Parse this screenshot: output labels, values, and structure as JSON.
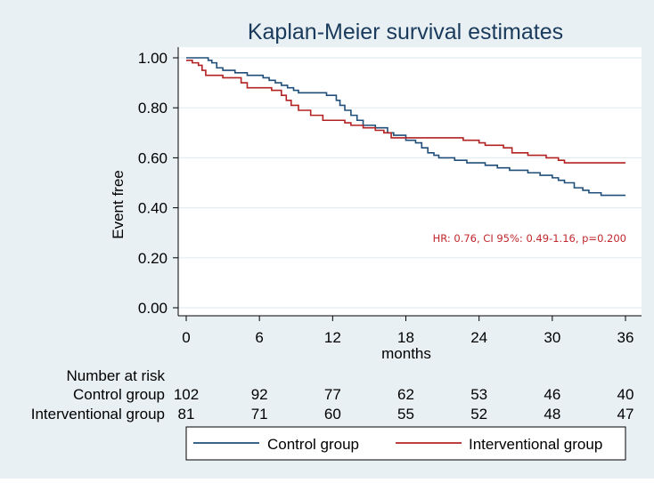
{
  "chart_data": {
    "type": "line",
    "title": "Kaplan-Meier survival estimates",
    "xlabel": "months",
    "ylabel": "Event free",
    "xlim": [
      0,
      36
    ],
    "ylim": [
      0,
      1
    ],
    "x_ticks": [
      0,
      6,
      12,
      18,
      24,
      30,
      36
    ],
    "y_ticks": [
      0,
      0.2,
      0.4,
      0.6,
      0.8,
      1.0
    ],
    "x_tick_labels": [
      "0",
      "6",
      "12",
      "18",
      "24",
      "30",
      "36"
    ],
    "y_tick_labels": [
      "0.00",
      "0.20",
      "0.40",
      "0.60",
      "0.80",
      "1.00"
    ],
    "grid": true,
    "legend_position": "bottom",
    "annotation": "HR: 0.76, CI 95%: 0.49-1.16, p=0.200",
    "colors": {
      "control": "#1f4e79",
      "interventional": "#b22222",
      "annotation": "#c0282c",
      "background": "#e8f0f3",
      "plot_bg": "#ffffff"
    },
    "series": [
      {
        "name": "Control group",
        "color": "#1f4e79",
        "points": [
          [
            0,
            1.0
          ],
          [
            1.6,
            1.0
          ],
          [
            1.8,
            0.99
          ],
          [
            2.1,
            0.98
          ],
          [
            2.5,
            0.96
          ],
          [
            3.0,
            0.95
          ],
          [
            4.0,
            0.94
          ],
          [
            5.0,
            0.93
          ],
          [
            6.0,
            0.93
          ],
          [
            6.3,
            0.92
          ],
          [
            6.8,
            0.91
          ],
          [
            7.3,
            0.9
          ],
          [
            7.8,
            0.89
          ],
          [
            8.3,
            0.88
          ],
          [
            8.8,
            0.87
          ],
          [
            9.2,
            0.86
          ],
          [
            10.0,
            0.86
          ],
          [
            11.0,
            0.86
          ],
          [
            11.5,
            0.85
          ],
          [
            12.0,
            0.85
          ],
          [
            12.3,
            0.83
          ],
          [
            12.6,
            0.81
          ],
          [
            13.0,
            0.79
          ],
          [
            13.5,
            0.77
          ],
          [
            14.0,
            0.75
          ],
          [
            14.5,
            0.73
          ],
          [
            15.5,
            0.72
          ],
          [
            16.5,
            0.7
          ],
          [
            17.0,
            0.69
          ],
          [
            18.0,
            0.67
          ],
          [
            18.8,
            0.66
          ],
          [
            19.3,
            0.64
          ],
          [
            19.8,
            0.62
          ],
          [
            20.3,
            0.61
          ],
          [
            20.7,
            0.6
          ],
          [
            22.0,
            0.59
          ],
          [
            23.0,
            0.58
          ],
          [
            24.0,
            0.58
          ],
          [
            24.5,
            0.57
          ],
          [
            25.5,
            0.56
          ],
          [
            26.5,
            0.55
          ],
          [
            27.0,
            0.55
          ],
          [
            28.0,
            0.54
          ],
          [
            29.0,
            0.53
          ],
          [
            30.0,
            0.52
          ],
          [
            30.5,
            0.51
          ],
          [
            31.0,
            0.5
          ],
          [
            31.8,
            0.48
          ],
          [
            32.5,
            0.47
          ],
          [
            33.0,
            0.46
          ],
          [
            34.0,
            0.45
          ],
          [
            36.0,
            0.45
          ]
        ]
      },
      {
        "name": "Interventional group",
        "color": "#b22222",
        "points": [
          [
            0,
            0.99
          ],
          [
            0.5,
            0.98
          ],
          [
            1.0,
            0.97
          ],
          [
            1.3,
            0.95
          ],
          [
            1.6,
            0.93
          ],
          [
            2.5,
            0.93
          ],
          [
            3.0,
            0.92
          ],
          [
            4.5,
            0.9
          ],
          [
            5.0,
            0.88
          ],
          [
            6.0,
            0.88
          ],
          [
            7.0,
            0.87
          ],
          [
            7.8,
            0.85
          ],
          [
            8.2,
            0.83
          ],
          [
            8.6,
            0.81
          ],
          [
            9.2,
            0.79
          ],
          [
            10.2,
            0.77
          ],
          [
            11.2,
            0.75
          ],
          [
            12.0,
            0.75
          ],
          [
            13.0,
            0.74
          ],
          [
            13.5,
            0.73
          ],
          [
            14.5,
            0.72
          ],
          [
            15.5,
            0.71
          ],
          [
            16.2,
            0.7
          ],
          [
            16.8,
            0.68
          ],
          [
            18.0,
            0.68
          ],
          [
            19.0,
            0.68
          ],
          [
            22.0,
            0.68
          ],
          [
            22.7,
            0.67
          ],
          [
            24.0,
            0.66
          ],
          [
            24.5,
            0.65
          ],
          [
            25.5,
            0.65
          ],
          [
            26.0,
            0.64
          ],
          [
            26.7,
            0.62
          ],
          [
            28.0,
            0.61
          ],
          [
            29.0,
            0.61
          ],
          [
            29.5,
            0.6
          ],
          [
            30.0,
            0.6
          ],
          [
            30.5,
            0.59
          ],
          [
            31.0,
            0.58
          ],
          [
            36.0,
            0.58
          ]
        ]
      }
    ],
    "risk_table": {
      "title": "Number at risk",
      "rows": [
        {
          "label": "Control group",
          "values": [
            "102",
            "92",
            "77",
            "62",
            "53",
            "46",
            "40"
          ]
        },
        {
          "label": "Interventional group",
          "values": [
            "81",
            "71",
            "60",
            "55",
            "52",
            "48",
            "47"
          ]
        }
      ]
    }
  }
}
